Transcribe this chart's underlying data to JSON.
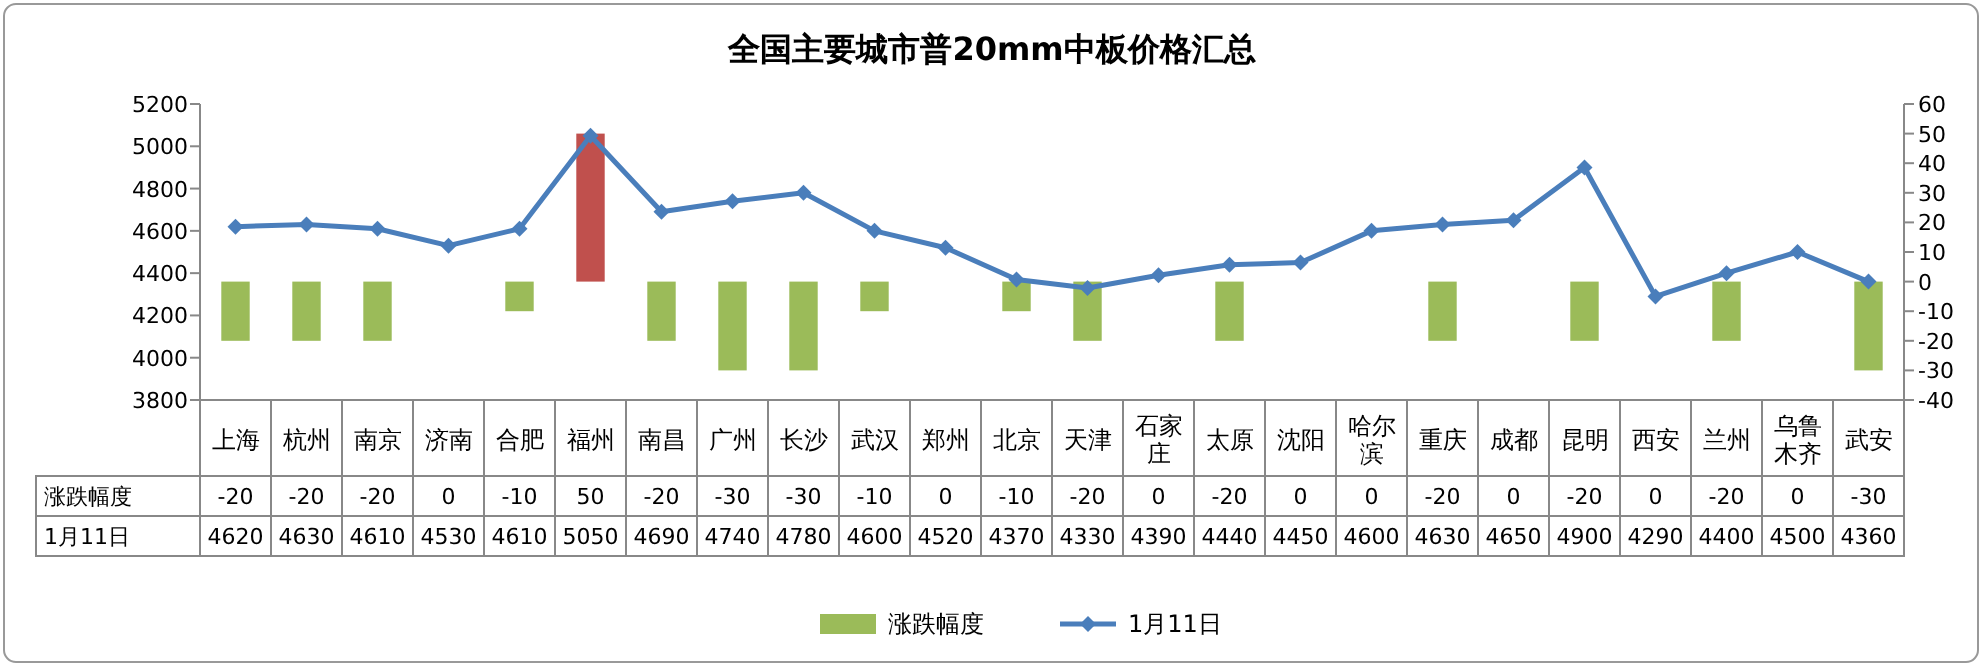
{
  "chart_data": {
    "type": "bar",
    "title": "全国主要城市普20mm中板价格汇总",
    "categories": [
      "上海",
      "杭州",
      "南京",
      "济南",
      "合肥",
      "福州",
      "南昌",
      "广州",
      "长沙",
      "武汉",
      "郑州",
      "北京",
      "天津",
      "石家庄",
      "太原",
      "沈阳",
      "哈尔滨",
      "重庆",
      "成都",
      "昆明",
      "西安",
      "兰州",
      "乌鲁木齐",
      "武安"
    ],
    "series": [
      {
        "name": "涨跌幅度",
        "axis": "y2",
        "color": "#9bbb59",
        "colors": [
          "#9bbb59",
          "#9bbb59",
          "#9bbb59",
          "#9bbb59",
          "#9bbb59",
          "#c0504d",
          "#9bbb59",
          "#9bbb59",
          "#9bbb59",
          "#9bbb59",
          "#9bbb59",
          "#9bbb59",
          "#9bbb59",
          "#9bbb59",
          "#9bbb59",
          "#9bbb59",
          "#9bbb59",
          "#9bbb59",
          "#9bbb59",
          "#9bbb59",
          "#9bbb59",
          "#9bbb59",
          "#9bbb59",
          "#9bbb59"
        ],
        "values": [
          -20,
          -20,
          -20,
          0,
          -10,
          50,
          -20,
          -30,
          -30,
          -10,
          0,
          -10,
          -20,
          0,
          -20,
          0,
          0,
          -20,
          0,
          -20,
          0,
          -20,
          0,
          -30
        ]
      },
      {
        "name": "1月11日",
        "type": "line",
        "color": "#4a7ebb",
        "values": [
          4620,
          4630,
          4610,
          4530,
          4610,
          5050,
          4690,
          4740,
          4780,
          4600,
          4520,
          4370,
          4330,
          4390,
          4440,
          4450,
          4600,
          4630,
          4650,
          4900,
          4290,
          4400,
          4500,
          4360
        ]
      }
    ],
    "ylim": [
      3800,
      5200
    ],
    "yticks": [
      3800,
      4000,
      4200,
      4400,
      4600,
      4800,
      5000,
      5200
    ],
    "y2lim": [
      -40,
      60
    ],
    "y2ticks": [
      -40,
      -30,
      -20,
      -10,
      0,
      10,
      20,
      30,
      40,
      50,
      60
    ],
    "data_labels": true,
    "legend": "bottom",
    "marker": "diamond"
  }
}
